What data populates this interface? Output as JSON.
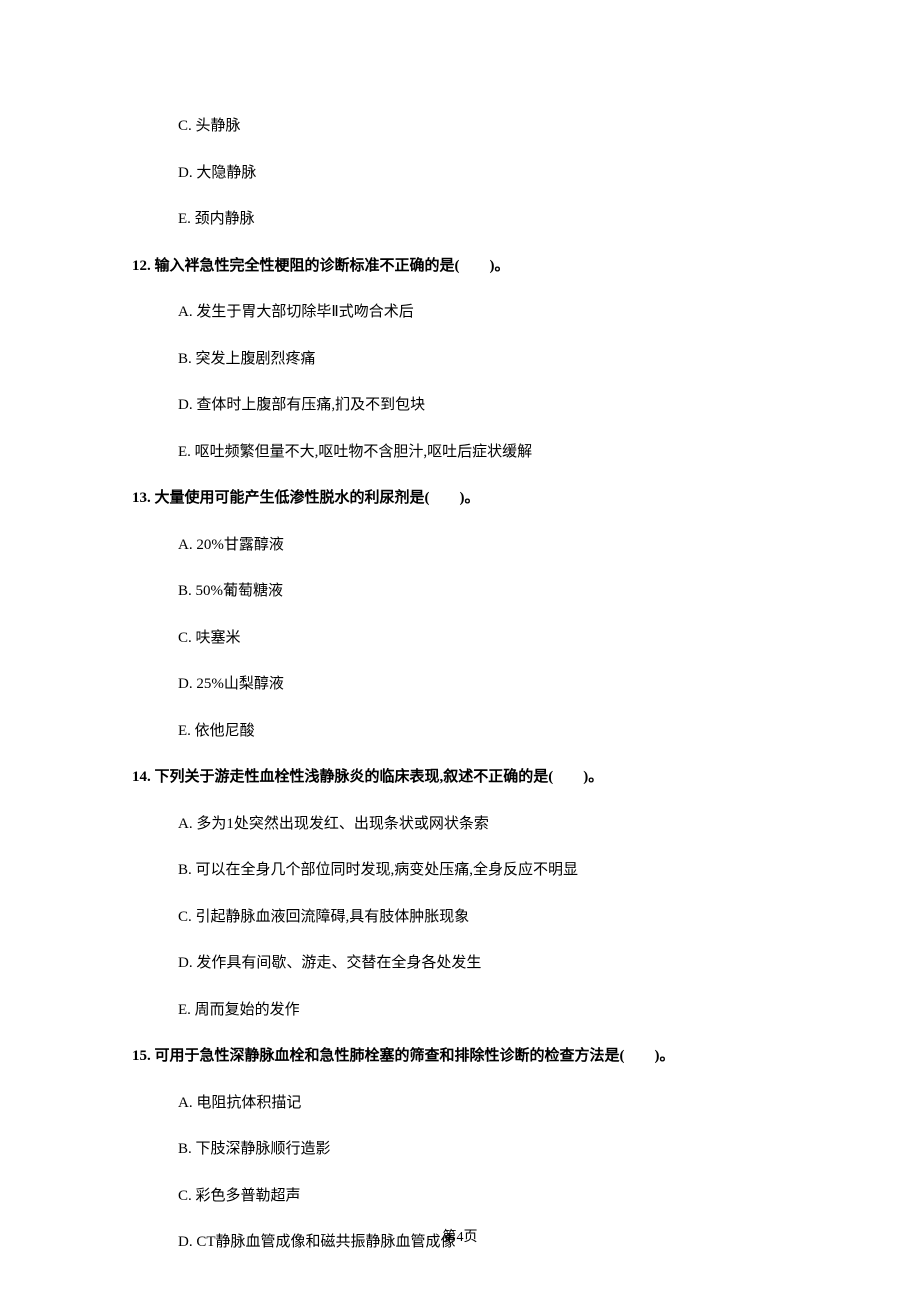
{
  "options_top": [
    {
      "label": "C. 头静脉"
    },
    {
      "label": "D. 大隐静脉"
    },
    {
      "label": "E. 颈内静脉"
    }
  ],
  "q12": {
    "text": "12. 输入袢急性完全性梗阻的诊断标准不正确的是(　　)。",
    "options": [
      {
        "label": "A. 发生于胃大部切除毕Ⅱ式吻合术后"
      },
      {
        "label": "B. 突发上腹剧烈疼痛"
      },
      {
        "label": "D. 查体时上腹部有压痛,扪及不到包块"
      },
      {
        "label": "E. 呕吐频繁但量不大,呕吐物不含胆汁,呕吐后症状缓解"
      }
    ]
  },
  "q13": {
    "text": "13. 大量使用可能产生低渗性脱水的利尿剂是(　　)。",
    "options": [
      {
        "label": "A. 20%甘露醇液"
      },
      {
        "label": "B. 50%葡萄糖液"
      },
      {
        "label": "C. 呋塞米"
      },
      {
        "label": "D. 25%山梨醇液"
      },
      {
        "label": "E. 依他尼酸"
      }
    ]
  },
  "q14": {
    "text": "14. 下列关于游走性血栓性浅静脉炎的临床表现,叙述不正确的是(　　)。",
    "options": [
      {
        "label": "A. 多为1处突然出现发红、出现条状或网状条索"
      },
      {
        "label": "B. 可以在全身几个部位同时发现,病变处压痛,全身反应不明显"
      },
      {
        "label": "C. 引起静脉血液回流障碍,具有肢体肿胀现象"
      },
      {
        "label": "D. 发作具有间歇、游走、交替在全身各处发生"
      },
      {
        "label": "E. 周而复始的发作"
      }
    ]
  },
  "q15": {
    "text": "15. 可用于急性深静脉血栓和急性肺栓塞的筛查和排除性诊断的检查方法是(　　)。",
    "options": [
      {
        "label": "A. 电阻抗体积描记"
      },
      {
        "label": "B. 下肢深静脉顺行造影"
      },
      {
        "label": "C. 彩色多普勒超声"
      },
      {
        "label": "D. CT静脉血管成像和磁共振静脉血管成像"
      }
    ]
  },
  "footer": "第4页"
}
